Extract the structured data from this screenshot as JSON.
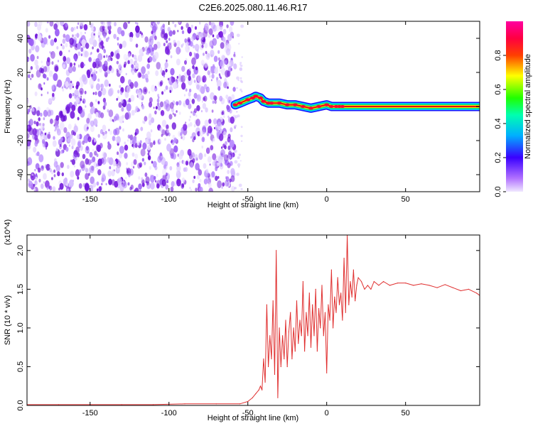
{
  "title": "C2E6.2025.080.11.46.R17",
  "colors": {
    "noise_purple": "#7a1fe0",
    "ridge_red": "#e01010",
    "snr_line": "#e03030",
    "axis": "#000000"
  },
  "chart_data": [
    {
      "type": "heatmap",
      "xlabel": "Height of straight line (km)",
      "ylabel": "Frequency (Hz)",
      "xlim": [
        -190,
        97
      ],
      "ylim": [
        -50,
        50
      ],
      "xticks": [
        -150,
        -100,
        -50,
        0,
        50
      ],
      "yticks": [
        -40,
        -20,
        0,
        20,
        40
      ],
      "colorbar": {
        "label": "Normalized spectral amplitude",
        "range": [
          0.0,
          1.0
        ],
        "ticks": [
          0.0,
          0.2,
          0.4,
          0.6,
          0.8
        ],
        "tick_labels": [
          "0.0",
          "0.2",
          "0.4",
          "0.6",
          "0.8"
        ],
        "colormap": "rainbow (purple→blue→cyan→green→yellow→red→magenta)"
      },
      "noise_region_x": [
        -190,
        -58
      ],
      "ridge": {
        "x": [
          -58,
          -55,
          -50,
          -47,
          -45,
          -42,
          -40,
          -37,
          -35,
          -30,
          -25,
          -20,
          -15,
          -10,
          -5,
          0,
          3,
          6,
          8,
          10,
          20,
          40,
          60,
          80,
          97
        ],
        "y": [
          1,
          2,
          4,
          5,
          6,
          5,
          3,
          2,
          2,
          2,
          1,
          1,
          0,
          -1,
          0,
          1,
          0,
          0,
          0,
          0,
          0,
          0,
          0,
          0,
          0
        ]
      }
    },
    {
      "type": "line",
      "xlabel": "Height of straight line (km)",
      "ylabel": "SNR (10 * v/v)",
      "y_multiplier": "(x10^4)",
      "xlim": [
        -190,
        97
      ],
      "ylim": [
        0,
        2.2
      ],
      "xticks": [
        -150,
        -100,
        -50,
        0,
        50
      ],
      "yticks": [
        0.0,
        0.5,
        1.0,
        1.5,
        2.0
      ],
      "ytick_labels": [
        "0.0",
        "0.5",
        "1.0",
        "1.5",
        "2.0"
      ],
      "series": [
        {
          "x": [
            -190,
            -170,
            -150,
            -130,
            -110,
            -90,
            -70,
            -55,
            -50,
            -47,
            -45,
            -43,
            -42,
            -41,
            -40,
            -39,
            -38,
            -37,
            -36,
            -35,
            -34,
            -33,
            -32,
            -31,
            -30,
            -29,
            -28,
            -27,
            -26,
            -25,
            -24,
            -23,
            -22,
            -21,
            -20,
            -19,
            -18,
            -17,
            -16,
            -15,
            -14,
            -13,
            -12,
            -11,
            -10,
            -9,
            -8,
            -7,
            -6,
            -5,
            -4,
            -3,
            -2,
            -1,
            0,
            1,
            2,
            3,
            4,
            5,
            6,
            7,
            8,
            9,
            10,
            11,
            12,
            13,
            14,
            15,
            16,
            17,
            18,
            19,
            20,
            22,
            24,
            26,
            28,
            30,
            33,
            36,
            40,
            45,
            50,
            55,
            60,
            65,
            70,
            75,
            80,
            85,
            90,
            95,
            97
          ],
          "y": [
            0.01,
            0.01,
            0.01,
            0.01,
            0.01,
            0.02,
            0.02,
            0.02,
            0.05,
            0.1,
            0.15,
            0.2,
            0.25,
            0.2,
            0.6,
            0.3,
            1.3,
            0.5,
            0.9,
            0.6,
            1.35,
            0.4,
            2.0,
            0.1,
            1.0,
            0.5,
            0.9,
            0.6,
            1.1,
            0.5,
            0.95,
            1.2,
            0.6,
            1.0,
            0.7,
            1.35,
            0.8,
            1.1,
            0.9,
            1.6,
            0.7,
            1.2,
            0.9,
            1.45,
            0.75,
            1.3,
            0.9,
            1.5,
            0.7,
            1.25,
            1.0,
            1.55,
            0.9,
            1.2,
            0.42,
            1.3,
            1.1,
            1.75,
            1.0,
            1.4,
            1.2,
            1.65,
            1.3,
            1.45,
            1.1,
            1.9,
            1.2,
            2.2,
            1.3,
            1.6,
            1.4,
            1.75,
            1.35,
            1.55,
            1.65,
            1.6,
            1.5,
            1.55,
            1.5,
            1.6,
            1.55,
            1.6,
            1.55,
            1.58,
            1.58,
            1.55,
            1.57,
            1.55,
            1.52,
            1.56,
            1.52,
            1.48,
            1.5,
            1.45,
            1.42
          ]
        }
      ]
    }
  ]
}
